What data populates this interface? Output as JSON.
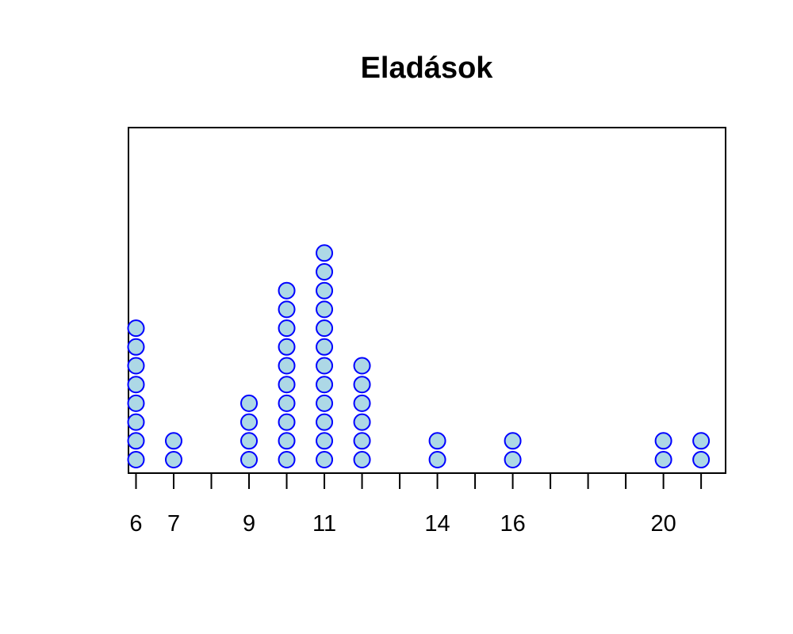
{
  "chart_data": {
    "type": "scatter",
    "variant": "dotplot",
    "title": "Eladások",
    "xlabel": "",
    "ylabel": "",
    "xlim": [
      5.8,
      21.65
    ],
    "ticks": [
      6,
      7,
      8,
      9,
      10,
      11,
      12,
      13,
      14,
      15,
      16,
      17,
      18,
      19,
      20,
      21
    ],
    "tick_labels": [
      "6",
      "7",
      "9",
      "11",
      "14",
      "16",
      "20"
    ],
    "tick_label_values": [
      6,
      7,
      9,
      11,
      14,
      16,
      20
    ],
    "points": [
      {
        "x": 6,
        "count": 8
      },
      {
        "x": 7,
        "count": 2
      },
      {
        "x": 9,
        "count": 4
      },
      {
        "x": 10,
        "count": 10
      },
      {
        "x": 11,
        "count": 12
      },
      {
        "x": 12,
        "count": 6
      },
      {
        "x": 14,
        "count": 2
      },
      {
        "x": 16,
        "count": 2
      },
      {
        "x": 20,
        "count": 2
      },
      {
        "x": 21,
        "count": 2
      }
    ],
    "marker_fill": "#add8e6",
    "marker_stroke": "#0000ff",
    "grid": false,
    "legend": "none"
  }
}
